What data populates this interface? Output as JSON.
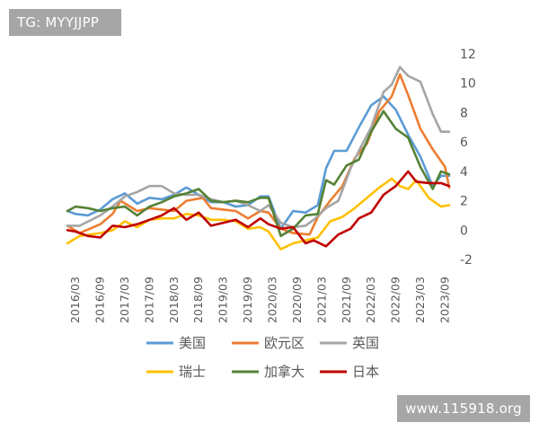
{
  "watermark_top": "TG: MYYJJPP",
  "watermark_bottom": "www.115918.org",
  "chart_data": {
    "type": "line",
    "title": "",
    "xlabel": "",
    "ylabel": "",
    "ylim": [
      -2,
      12
    ],
    "yticks": [
      12,
      10,
      8,
      6,
      4,
      2,
      0,
      -2
    ],
    "y_axis_side": "right",
    "grid": false,
    "legend_position": "bottom",
    "x_tick_labels": [
      "2016/03",
      "2016/09",
      "2017/03",
      "2017/09",
      "2018/03",
      "2018/09",
      "2019/03",
      "2019/09",
      "2020/03",
      "2020/09",
      "2021/03",
      "2021/09",
      "2022/03",
      "2022/09",
      "2023/03",
      "2023/09"
    ],
    "x_start": "2016-01",
    "x_end": "2023-10",
    "series": [
      {
        "name": "美国",
        "color": "#5b9bd5",
        "points": [
          [
            "2016-01",
            1.3
          ],
          [
            "2016-03",
            1.1
          ],
          [
            "2016-06",
            1.0
          ],
          [
            "2016-09",
            1.4
          ],
          [
            "2016-12",
            2.1
          ],
          [
            "2017-03",
            2.5
          ],
          [
            "2017-06",
            1.8
          ],
          [
            "2017-09",
            2.2
          ],
          [
            "2017-12",
            2.1
          ],
          [
            "2018-03",
            2.4
          ],
          [
            "2018-06",
            2.9
          ],
          [
            "2018-09",
            2.4
          ],
          [
            "2018-12",
            1.9
          ],
          [
            "2019-03",
            1.9
          ],
          [
            "2019-06",
            1.6
          ],
          [
            "2019-09",
            1.7
          ],
          [
            "2019-12",
            2.3
          ],
          [
            "2020-02",
            2.3
          ],
          [
            "2020-05",
            0.1
          ],
          [
            "2020-08",
            1.3
          ],
          [
            "2020-11",
            1.2
          ],
          [
            "2021-02",
            1.7
          ],
          [
            "2021-04",
            4.2
          ],
          [
            "2021-06",
            5.4
          ],
          [
            "2021-09",
            5.4
          ],
          [
            "2021-12",
            7.0
          ],
          [
            "2022-03",
            8.5
          ],
          [
            "2022-06",
            9.1
          ],
          [
            "2022-09",
            8.2
          ],
          [
            "2022-12",
            6.5
          ],
          [
            "2023-03",
            5.0
          ],
          [
            "2023-06",
            3.0
          ],
          [
            "2023-08",
            3.7
          ],
          [
            "2023-10",
            3.7
          ]
        ]
      },
      {
        "name": "欧元区",
        "color": "#ed7d31",
        "points": [
          [
            "2016-01",
            0.3
          ],
          [
            "2016-04",
            -0.2
          ],
          [
            "2016-09",
            0.4
          ],
          [
            "2016-12",
            1.1
          ],
          [
            "2017-02",
            2.0
          ],
          [
            "2017-06",
            1.3
          ],
          [
            "2017-09",
            1.5
          ],
          [
            "2017-12",
            1.4
          ],
          [
            "2018-03",
            1.3
          ],
          [
            "2018-06",
            2.0
          ],
          [
            "2018-10",
            2.2
          ],
          [
            "2018-12",
            1.5
          ],
          [
            "2019-03",
            1.4
          ],
          [
            "2019-06",
            1.3
          ],
          [
            "2019-09",
            0.8
          ],
          [
            "2019-12",
            1.3
          ],
          [
            "2020-02",
            1.2
          ],
          [
            "2020-05",
            0.1
          ],
          [
            "2020-08",
            -0.2
          ],
          [
            "2020-12",
            -0.3
          ],
          [
            "2021-02",
            0.9
          ],
          [
            "2021-05",
            2.0
          ],
          [
            "2021-08",
            3.0
          ],
          [
            "2021-11",
            4.9
          ],
          [
            "2022-02",
            5.9
          ],
          [
            "2022-05",
            8.1
          ],
          [
            "2022-08",
            9.1
          ],
          [
            "2022-10",
            10.6
          ],
          [
            "2022-12",
            9.2
          ],
          [
            "2023-03",
            6.9
          ],
          [
            "2023-06",
            5.5
          ],
          [
            "2023-09",
            4.3
          ],
          [
            "2023-10",
            2.9
          ]
        ]
      },
      {
        "name": "英国",
        "color": "#a5a5a5",
        "points": [
          [
            "2016-01",
            0.3
          ],
          [
            "2016-04",
            0.3
          ],
          [
            "2016-09",
            1.0
          ],
          [
            "2016-12",
            1.6
          ],
          [
            "2017-03",
            2.3
          ],
          [
            "2017-06",
            2.6
          ],
          [
            "2017-09",
            3.0
          ],
          [
            "2017-12",
            3.0
          ],
          [
            "2018-03",
            2.5
          ],
          [
            "2018-06",
            2.4
          ],
          [
            "2018-09",
            2.4
          ],
          [
            "2018-12",
            2.1
          ],
          [
            "2019-03",
            1.9
          ],
          [
            "2019-06",
            2.0
          ],
          [
            "2019-09",
            1.7
          ],
          [
            "2019-12",
            1.3
          ],
          [
            "2020-02",
            1.7
          ],
          [
            "2020-05",
            0.5
          ],
          [
            "2020-08",
            0.2
          ],
          [
            "2020-11",
            0.3
          ],
          [
            "2021-01",
            0.7
          ],
          [
            "2021-04",
            1.5
          ],
          [
            "2021-07",
            2.0
          ],
          [
            "2021-10",
            4.2
          ],
          [
            "2021-12",
            5.4
          ],
          [
            "2022-03",
            7.0
          ],
          [
            "2022-06",
            9.4
          ],
          [
            "2022-08",
            9.9
          ],
          [
            "2022-10",
            11.1
          ],
          [
            "2022-12",
            10.5
          ],
          [
            "2023-03",
            10.1
          ],
          [
            "2023-06",
            7.9
          ],
          [
            "2023-08",
            6.7
          ],
          [
            "2023-10",
            6.7
          ]
        ]
      },
      {
        "name": "瑞士",
        "color": "#ffc000",
        "points": [
          [
            "2016-01",
            -0.9
          ],
          [
            "2016-04",
            -0.4
          ],
          [
            "2016-09",
            -0.2
          ],
          [
            "2016-12",
            0.0
          ],
          [
            "2017-03",
            0.6
          ],
          [
            "2017-06",
            0.2
          ],
          [
            "2017-09",
            0.7
          ],
          [
            "2017-12",
            0.8
          ],
          [
            "2018-03",
            0.8
          ],
          [
            "2018-06",
            1.1
          ],
          [
            "2018-09",
            1.0
          ],
          [
            "2018-12",
            0.7
          ],
          [
            "2019-03",
            0.7
          ],
          [
            "2019-06",
            0.6
          ],
          [
            "2019-09",
            0.1
          ],
          [
            "2019-12",
            0.2
          ],
          [
            "2020-02",
            -0.1
          ],
          [
            "2020-05",
            -1.3
          ],
          [
            "2020-08",
            -0.9
          ],
          [
            "2020-11",
            -0.7
          ],
          [
            "2021-02",
            -0.5
          ],
          [
            "2021-05",
            0.6
          ],
          [
            "2021-08",
            0.9
          ],
          [
            "2021-11",
            1.5
          ],
          [
            "2022-02",
            2.2
          ],
          [
            "2022-05",
            2.9
          ],
          [
            "2022-08",
            3.5
          ],
          [
            "2022-10",
            3.0
          ],
          [
            "2022-12",
            2.8
          ],
          [
            "2023-02",
            3.4
          ],
          [
            "2023-05",
            2.2
          ],
          [
            "2023-08",
            1.6
          ],
          [
            "2023-10",
            1.7
          ]
        ]
      },
      {
        "name": "加拿大",
        "color": "#548235",
        "points": [
          [
            "2016-01",
            1.3
          ],
          [
            "2016-03",
            1.6
          ],
          [
            "2016-06",
            1.5
          ],
          [
            "2016-09",
            1.3
          ],
          [
            "2016-12",
            1.5
          ],
          [
            "2017-03",
            1.6
          ],
          [
            "2017-06",
            1.0
          ],
          [
            "2017-09",
            1.6
          ],
          [
            "2017-12",
            1.9
          ],
          [
            "2018-03",
            2.3
          ],
          [
            "2018-06",
            2.5
          ],
          [
            "2018-09",
            2.8
          ],
          [
            "2018-12",
            2.0
          ],
          [
            "2019-03",
            1.9
          ],
          [
            "2019-06",
            2.0
          ],
          [
            "2019-09",
            1.9
          ],
          [
            "2019-12",
            2.2
          ],
          [
            "2020-02",
            2.2
          ],
          [
            "2020-05",
            -0.4
          ],
          [
            "2020-08",
            0.1
          ],
          [
            "2020-11",
            1.0
          ],
          [
            "2021-02",
            1.1
          ],
          [
            "2021-04",
            3.4
          ],
          [
            "2021-06",
            3.1
          ],
          [
            "2021-09",
            4.4
          ],
          [
            "2021-12",
            4.8
          ],
          [
            "2022-03",
            6.7
          ],
          [
            "2022-06",
            8.1
          ],
          [
            "2022-09",
            6.9
          ],
          [
            "2022-12",
            6.3
          ],
          [
            "2023-03",
            4.3
          ],
          [
            "2023-06",
            2.8
          ],
          [
            "2023-08",
            4.0
          ],
          [
            "2023-10",
            3.8
          ]
        ]
      },
      {
        "name": "日本",
        "color": "#c00000",
        "points": [
          [
            "2016-01",
            0.0
          ],
          [
            "2016-03",
            -0.1
          ],
          [
            "2016-06",
            -0.4
          ],
          [
            "2016-09",
            -0.5
          ],
          [
            "2016-12",
            0.3
          ],
          [
            "2017-03",
            0.2
          ],
          [
            "2017-06",
            0.4
          ],
          [
            "2017-09",
            0.7
          ],
          [
            "2017-12",
            1.0
          ],
          [
            "2018-03",
            1.5
          ],
          [
            "2018-06",
            0.7
          ],
          [
            "2018-09",
            1.2
          ],
          [
            "2018-12",
            0.3
          ],
          [
            "2019-03",
            0.5
          ],
          [
            "2019-06",
            0.7
          ],
          [
            "2019-09",
            0.2
          ],
          [
            "2019-12",
            0.8
          ],
          [
            "2020-02",
            0.4
          ],
          [
            "2020-05",
            0.1
          ],
          [
            "2020-08",
            0.2
          ],
          [
            "2020-11",
            -0.9
          ],
          [
            "2021-01",
            -0.7
          ],
          [
            "2021-04",
            -1.1
          ],
          [
            "2021-07",
            -0.3
          ],
          [
            "2021-10",
            0.1
          ],
          [
            "2021-12",
            0.8
          ],
          [
            "2022-03",
            1.2
          ],
          [
            "2022-06",
            2.4
          ],
          [
            "2022-09",
            3.0
          ],
          [
            "2022-12",
            4.0
          ],
          [
            "2023-02",
            3.3
          ],
          [
            "2023-05",
            3.2
          ],
          [
            "2023-08",
            3.2
          ],
          [
            "2023-10",
            3.0
          ]
        ]
      }
    ]
  }
}
